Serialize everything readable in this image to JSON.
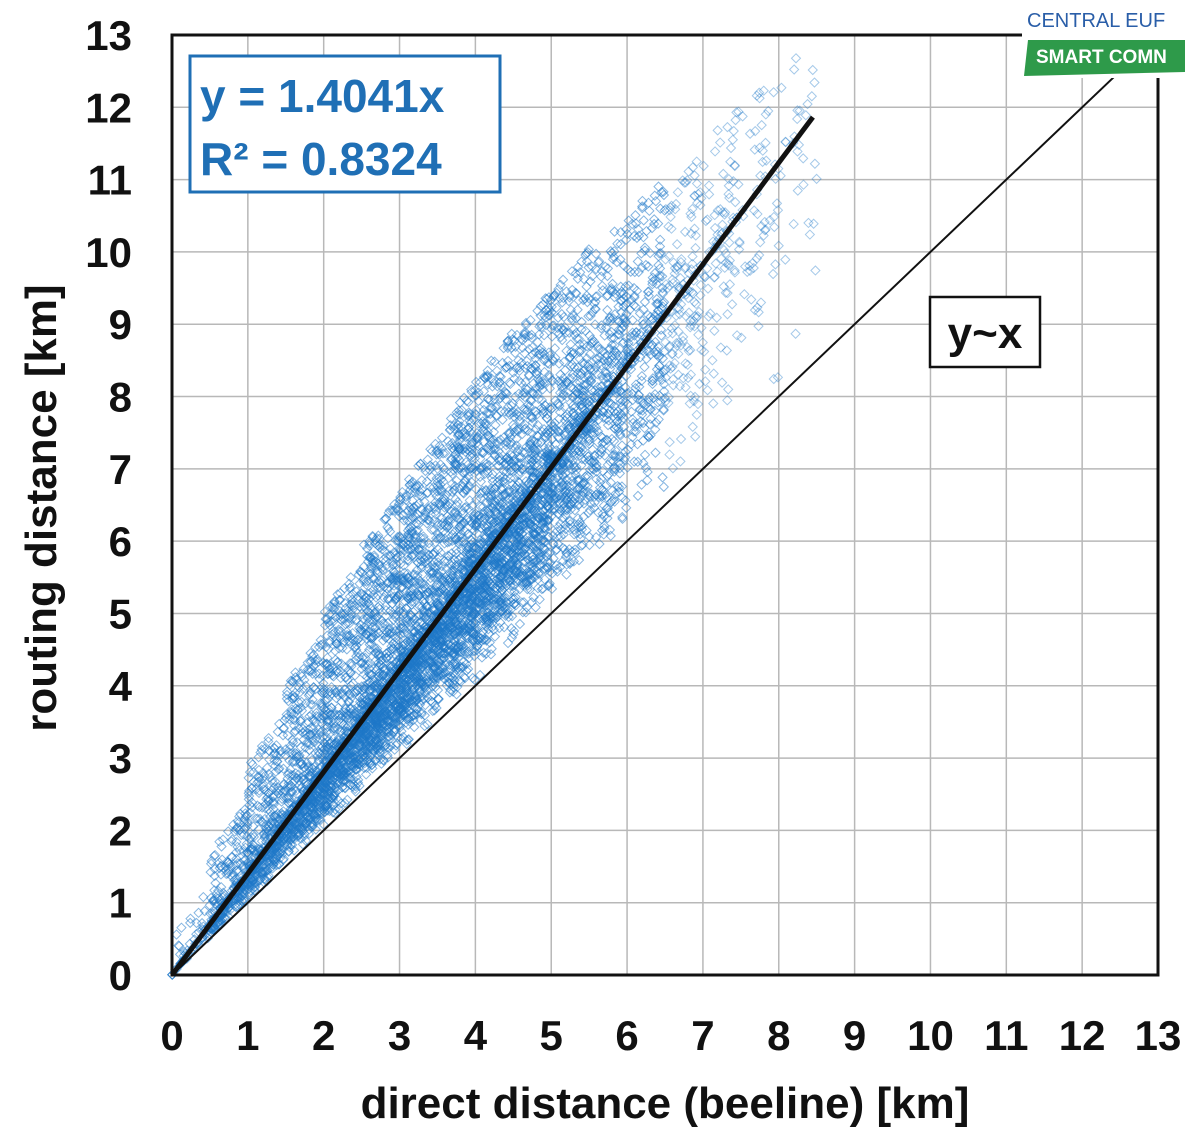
{
  "chart_data": {
    "type": "scatter",
    "title": "",
    "xlabel": "direct distance (beeline) [km]",
    "ylabel": "routing distance [km]",
    "xlim": [
      0,
      13
    ],
    "ylim": [
      0,
      13
    ],
    "x_ticks": [
      "0",
      "1",
      "2",
      "3",
      "4",
      "5",
      "6",
      "7",
      "8",
      "9",
      "10",
      "11",
      "12",
      "13"
    ],
    "y_ticks": [
      "0",
      "1",
      "2",
      "3",
      "4",
      "5",
      "6",
      "7",
      "8",
      "9",
      "10",
      "11",
      "12",
      "13"
    ],
    "grid": true,
    "marker": "diamond-open",
    "point_color": "#1f78c8",
    "series": [
      {
        "points_description_only": true,
        "trend": {
          "slope": 1.4041,
          "x_range": [
            0,
            8.45
          ]
        }
      }
    ],
    "point_density": {
      "x_bins": [
        0.25,
        0.75,
        1.25,
        1.75,
        2.25,
        2.75,
        3.25,
        3.75,
        4.25,
        4.75,
        5.25,
        5.75,
        6.25,
        6.75,
        7.25,
        7.75,
        8.25
      ],
      "relative_count": [
        60,
        260,
        420,
        560,
        700,
        800,
        850,
        850,
        800,
        700,
        520,
        380,
        250,
        160,
        100,
        60,
        30
      ],
      "spread_above_fit": [
        0.5,
        1.0,
        1.5,
        1.9,
        2.2,
        2.4,
        2.5,
        2.6,
        2.6,
        2.5,
        2.4,
        2.2,
        2.0,
        1.8,
        1.6,
        1.4,
        1.2
      ]
    },
    "reference_line": {
      "label": "y~x",
      "slope": 1,
      "x_range": [
        0,
        13
      ]
    },
    "annotations": {
      "equation": "y = 1.4041x",
      "r_squared": "R² = 0.8324"
    }
  },
  "logo": {
    "line1": "CENTRAL EUF",
    "line2": "SMART COMN",
    "line1_color": "#2a5ea8",
    "banner_color": "#2e9a4a"
  }
}
